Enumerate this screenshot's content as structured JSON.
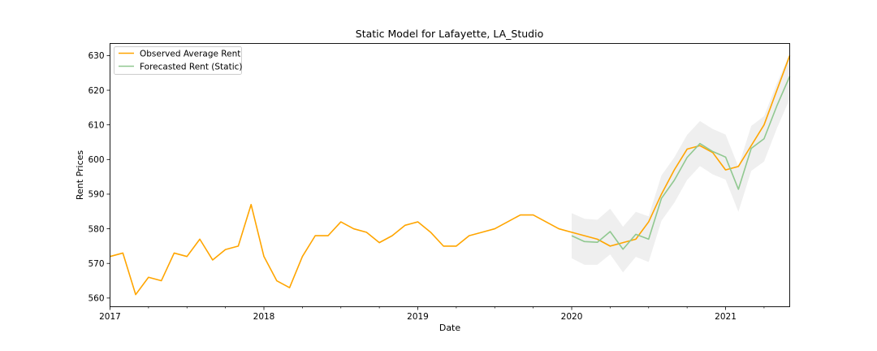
{
  "chart_data": {
    "type": "line",
    "title": "Static Model for Lafayette, LA_Studio",
    "xlabel": "Date",
    "ylabel": "Rent Prices",
    "xlim": [
      2017.0,
      2021.4167
    ],
    "ylim": [
      557.5,
      633.5
    ],
    "y_ticks": [
      560,
      570,
      580,
      590,
      600,
      610,
      620,
      630
    ],
    "x_ticks": [
      {
        "value": 2017,
        "label": "2017"
      },
      {
        "value": 2018,
        "label": "2018"
      },
      {
        "value": 2019,
        "label": "2019"
      },
      {
        "value": 2020,
        "label": "2020"
      },
      {
        "value": 2021,
        "label": "2021"
      }
    ],
    "legend_position": "top-left",
    "colors": {
      "observed": "#ffa500",
      "forecast": "#90c890",
      "band": "#d8d8d8"
    },
    "series": [
      {
        "name": "Observed Average Rent",
        "key": "observed",
        "start": 2017.0,
        "step_months": 1,
        "values": [
          572,
          573,
          561,
          566,
          565,
          573,
          572,
          577,
          571,
          574,
          575,
          587,
          572,
          565,
          563,
          572,
          578,
          578,
          582,
          580,
          579,
          576,
          578,
          581,
          582,
          579,
          575,
          575,
          578,
          579,
          580,
          582,
          584,
          584,
          582,
          580,
          579,
          578,
          577,
          575,
          576,
          577,
          582,
          590,
          597,
          603,
          604,
          602,
          597,
          598,
          604,
          610,
          620,
          630
        ]
      },
      {
        "name": "Forecasted Rent (Static)",
        "key": "forecast",
        "start": 2020.0,
        "step_months": 1,
        "values": [
          578,
          576.3,
          576.1,
          579.2,
          574.1,
          578.4,
          577,
          588.8,
          594,
          600.6,
          604.6,
          602.3,
          600.7,
          591.4,
          603.2,
          606,
          615.5,
          624
        ],
        "lower": [
          571.5,
          569.6,
          569.6,
          572.6,
          567.4,
          571.9,
          570.4,
          582.3,
          587.5,
          594.1,
          598.1,
          595.7,
          594.2,
          584.9,
          596.7,
          599.4,
          609,
          617.5
        ],
        "upper": [
          584.5,
          582.9,
          582.6,
          585.8,
          580.6,
          584.9,
          583.6,
          595.4,
          600.6,
          607.1,
          611.1,
          608.8,
          607.2,
          597.9,
          609.7,
          612.5,
          622,
          630.5
        ]
      }
    ]
  }
}
